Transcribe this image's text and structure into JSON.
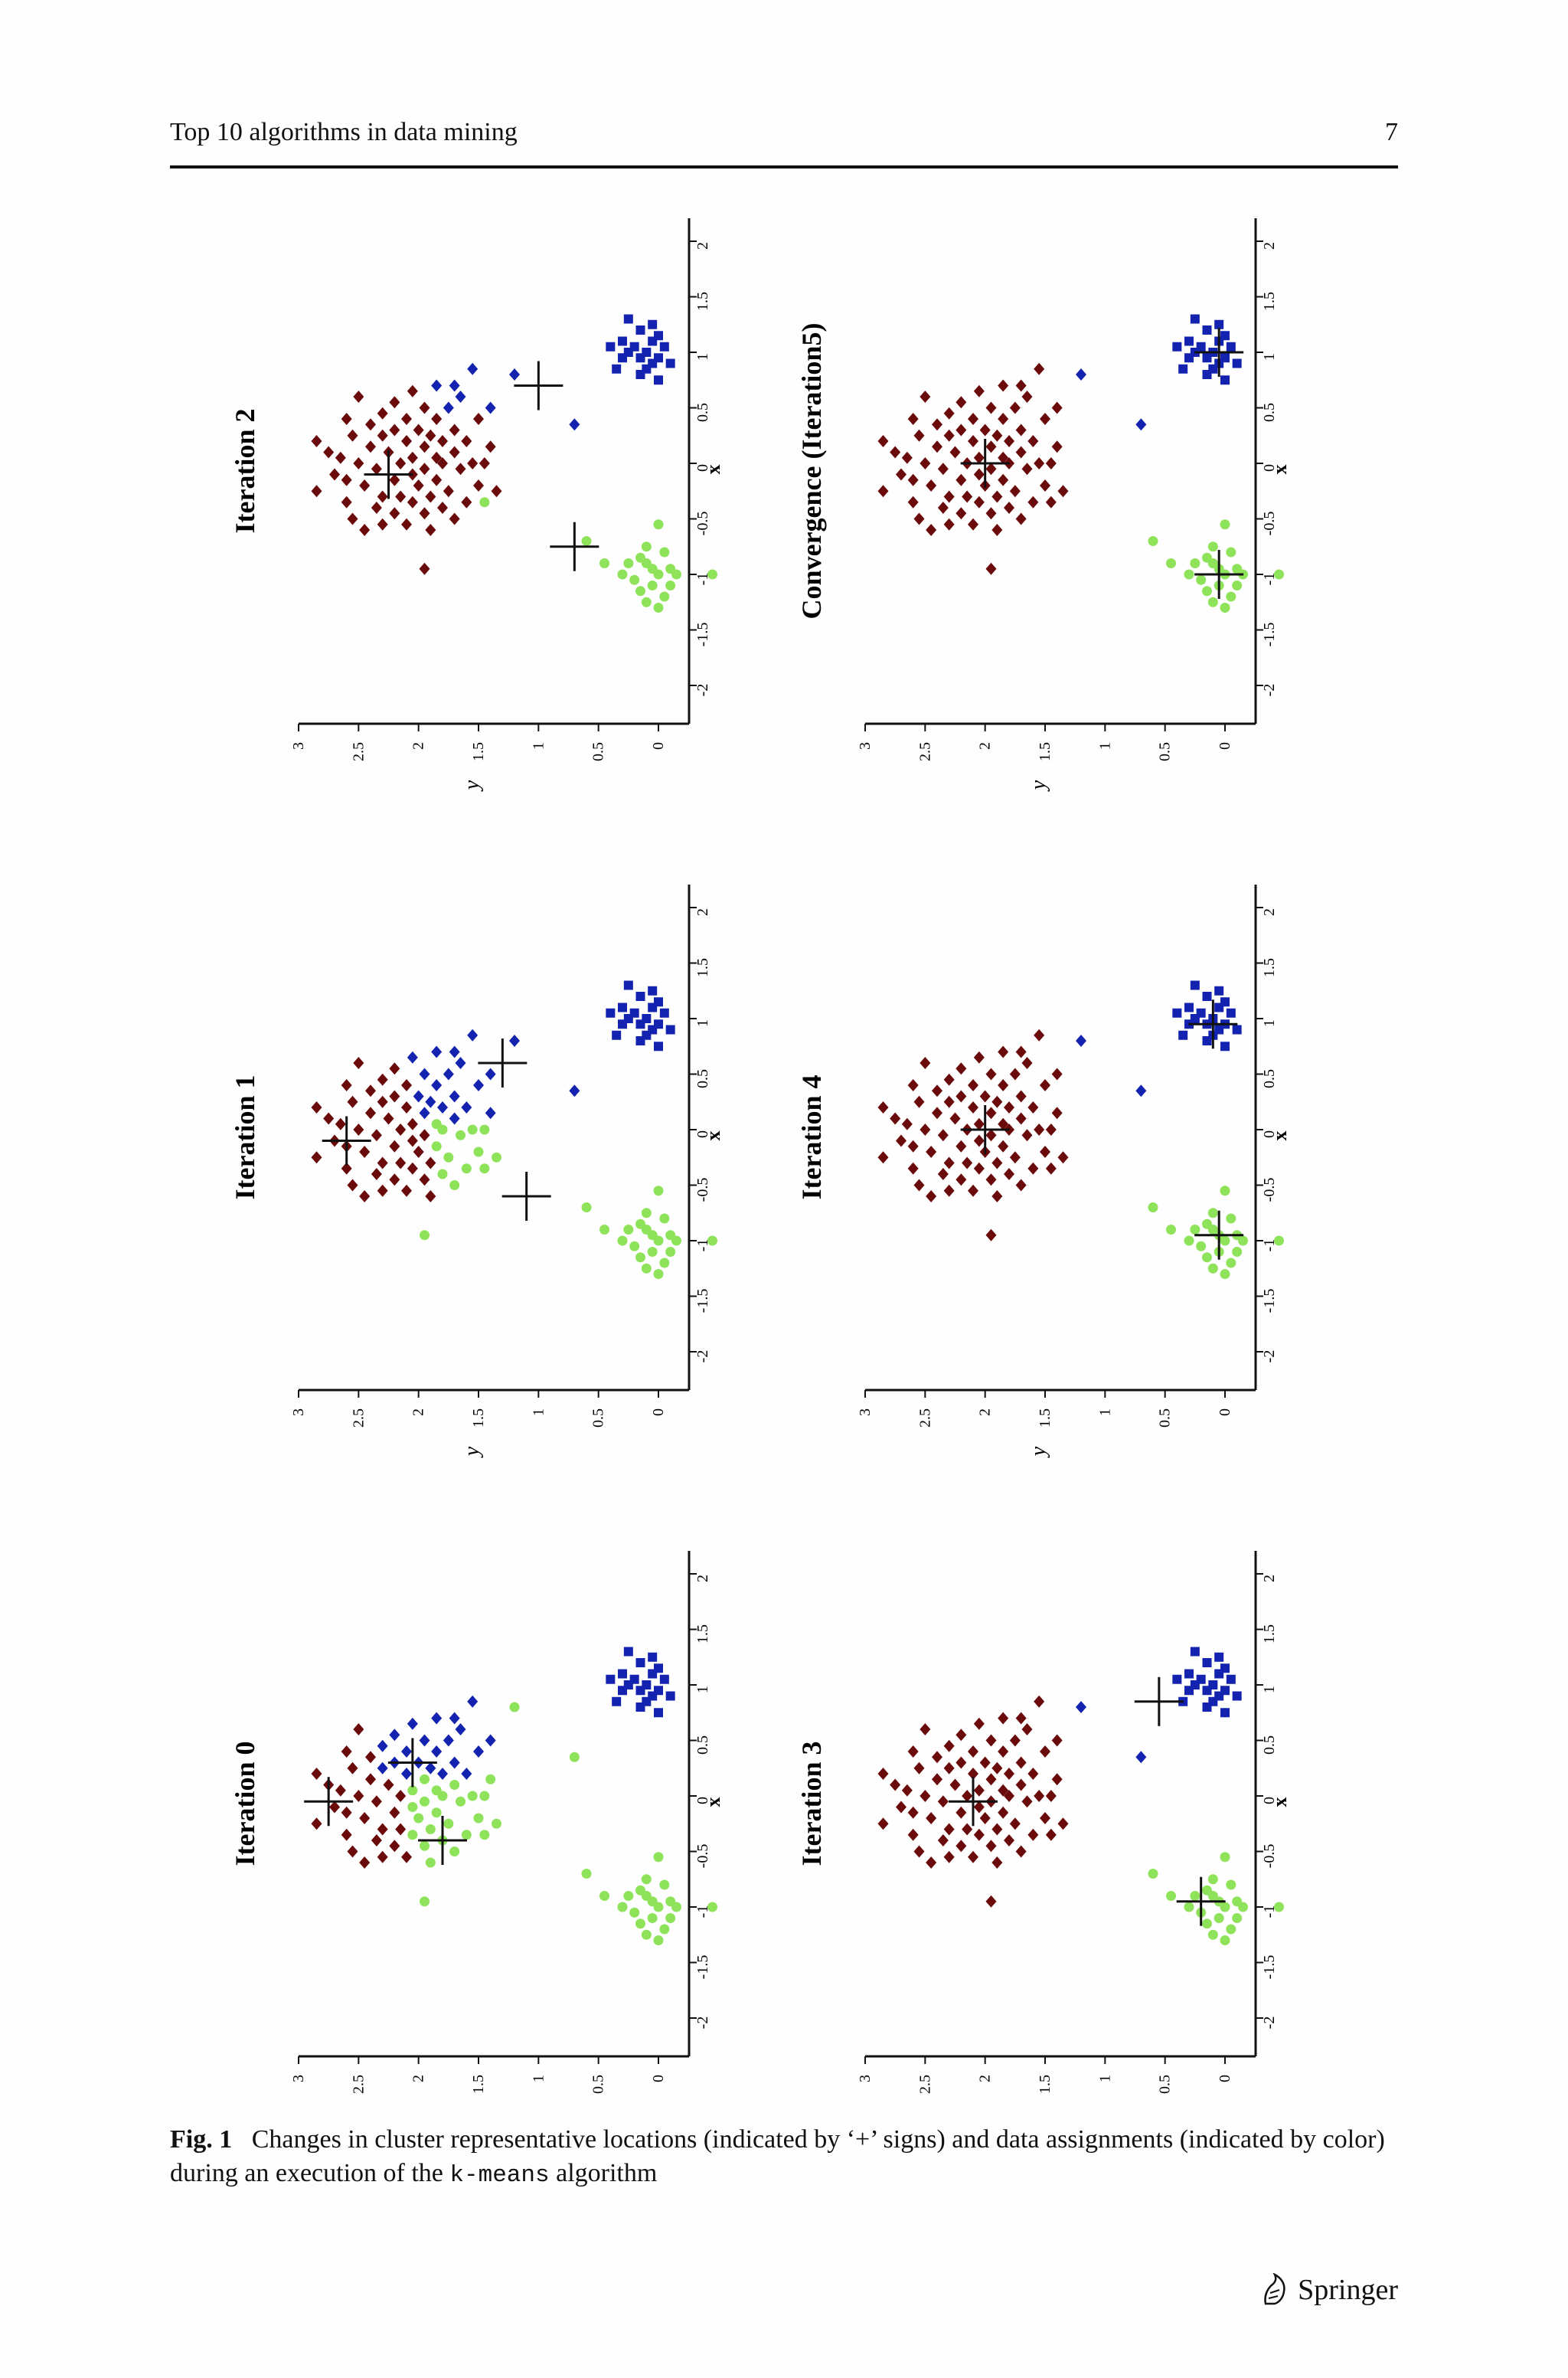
{
  "page": {
    "running_title": "Top 10 algorithms in data mining",
    "page_number": "7",
    "publisher": "Springer"
  },
  "caption": {
    "label": "Fig. 1",
    "text_before": "Changes in cluster representative locations (indicated by ‘+’ signs) and data assignments (indicated by color) during an execution of the ",
    "code": "k-means",
    "text_after": " algorithm"
  },
  "colors": {
    "cluster_a": "#6b0a0a",
    "cluster_b": "#1323b0",
    "cluster_c": "#8ee35a",
    "centroid": "#111111"
  },
  "chart_data": [
    {
      "type": "scatter",
      "title": "Iteration 0",
      "xlabel": "x",
      "ylabel": "y",
      "xlim": [
        -2,
        2
      ],
      "ylim": [
        0,
        3
      ],
      "xticks": [
        "-2",
        "-1.5",
        "-1",
        "-0.5",
        "0",
        "0.5",
        "1",
        "1.5",
        "2"
      ],
      "yticks": [
        "0",
        "0.5",
        "1",
        "1.5",
        "2",
        "2.5",
        "3"
      ],
      "orientation": "rotated 90° counter-clockwise",
      "centroids": [
        [
          -0.05,
          2.75
        ],
        [
          0.3,
          2.05
        ],
        [
          -0.4,
          1.8
        ]
      ],
      "assignment": "iter0"
    },
    {
      "type": "scatter",
      "title": "Iteration 1",
      "xlabel": "x",
      "ylabel": "y",
      "xlim": [
        -2,
        2
      ],
      "ylim": [
        0,
        3
      ],
      "xticks": [
        "-2",
        "-1.5",
        "-1",
        "-0.5",
        "0",
        "0.5",
        "1",
        "1.5",
        "2"
      ],
      "yticks": [
        "0",
        "0.5",
        "1",
        "1.5",
        "2",
        "2.5",
        "3"
      ],
      "orientation": "rotated 90° counter-clockwise",
      "centroids": [
        [
          -0.1,
          2.6
        ],
        [
          0.6,
          1.3
        ],
        [
          -0.6,
          1.1
        ]
      ],
      "assignment": "iter1"
    },
    {
      "type": "scatter",
      "title": "Iteration 2",
      "xlabel": "x",
      "ylabel": "y",
      "xlim": [
        -2,
        2
      ],
      "ylim": [
        0,
        3
      ],
      "xticks": [
        "-2",
        "-1.5",
        "-1",
        "-0.5",
        "0",
        "0.5",
        "1",
        "1.5",
        "2"
      ],
      "yticks": [
        "0",
        "0.5",
        "1",
        "1.5",
        "2",
        "2.5",
        "3"
      ],
      "orientation": "rotated 90° counter-clockwise",
      "centroids": [
        [
          -0.1,
          2.25
        ],
        [
          0.7,
          1.0
        ],
        [
          -0.75,
          0.7
        ]
      ],
      "assignment": "iter2"
    },
    {
      "type": "scatter",
      "title": "Iteration 3",
      "xlabel": "x",
      "ylabel": "y",
      "xlim": [
        -2,
        2
      ],
      "ylim": [
        0,
        3
      ],
      "xticks": [
        "-2",
        "-1.5",
        "-1",
        "-0.5",
        "0",
        "0.5",
        "1",
        "1.5",
        "2"
      ],
      "yticks": [
        "0",
        "0.5",
        "1",
        "1.5",
        "2",
        "2.5",
        "3"
      ],
      "orientation": "rotated 90° counter-clockwise",
      "centroids": [
        [
          -0.05,
          2.1
        ],
        [
          0.85,
          0.55
        ],
        [
          -0.95,
          0.2
        ]
      ],
      "assignment": "final"
    },
    {
      "type": "scatter",
      "title": "Iteration 4",
      "xlabel": "x",
      "ylabel": "y",
      "xlim": [
        -2,
        2
      ],
      "ylim": [
        0,
        3
      ],
      "xticks": [
        "-2",
        "-1.5",
        "-1",
        "-0.5",
        "0",
        "0.5",
        "1",
        "1.5",
        "2"
      ],
      "yticks": [
        "0",
        "0.5",
        "1",
        "1.5",
        "2",
        "2.5",
        "3"
      ],
      "orientation": "rotated 90° counter-clockwise",
      "centroids": [
        [
          0.0,
          2.0
        ],
        [
          0.95,
          0.1
        ],
        [
          -0.95,
          0.05
        ]
      ],
      "assignment": "final"
    },
    {
      "type": "scatter",
      "title": "Convergence (Iteration5)",
      "xlabel": "x",
      "ylabel": "y",
      "xlim": [
        -2,
        2
      ],
      "ylim": [
        0,
        3
      ],
      "xticks": [
        "-2",
        "-1.5",
        "-1",
        "-0.5",
        "0",
        "0.5",
        "1",
        "1.5",
        "2"
      ],
      "yticks": [
        "0",
        "0.5",
        "1",
        "1.5",
        "2",
        "2.5",
        "3"
      ],
      "orientation": "rotated 90° counter-clockwise",
      "centroids": [
        [
          0.0,
          2.0
        ],
        [
          1.0,
          0.05
        ],
        [
          -1.0,
          0.05
        ]
      ],
      "assignment": "final"
    }
  ],
  "points": {
    "a": [
      [
        -0.25,
        2.85
      ],
      [
        0.2,
        2.85
      ],
      [
        -0.1,
        2.7
      ],
      [
        0.05,
        2.65
      ],
      [
        -0.35,
        2.6
      ],
      [
        0.25,
        2.55
      ],
      [
        -0.5,
        2.55
      ],
      [
        0.4,
        2.6
      ],
      [
        0.6,
        2.5
      ],
      [
        -0.6,
        2.45
      ],
      [
        0.0,
        2.5
      ],
      [
        -0.2,
        2.45
      ],
      [
        0.15,
        2.4
      ],
      [
        0.35,
        2.4
      ],
      [
        -0.4,
        2.35
      ],
      [
        -0.05,
        2.35
      ],
      [
        0.25,
        2.3
      ],
      [
        0.45,
        2.3
      ],
      [
        -0.3,
        2.3
      ],
      [
        -0.55,
        2.3
      ],
      [
        0.1,
        2.25
      ],
      [
        -0.15,
        2.2
      ],
      [
        0.3,
        2.2
      ],
      [
        -0.45,
        2.2
      ],
      [
        0.55,
        2.2
      ],
      [
        0.0,
        2.15
      ],
      [
        -0.3,
        2.15
      ],
      [
        0.2,
        2.1
      ],
      [
        -0.55,
        2.1
      ],
      [
        0.4,
        2.1
      ],
      [
        -0.1,
        2.05
      ],
      [
        0.05,
        2.05
      ],
      [
        -0.35,
        2.05
      ],
      [
        0.65,
        2.05
      ],
      [
        0.3,
        2.0
      ],
      [
        -0.2,
        2.0
      ],
      [
        0.15,
        1.95
      ],
      [
        -0.45,
        1.95
      ],
      [
        -0.05,
        1.95
      ],
      [
        0.5,
        1.95
      ],
      [
        0.25,
        1.9
      ],
      [
        -0.3,
        1.9
      ],
      [
        -0.6,
        1.9
      ],
      [
        0.05,
        1.85
      ],
      [
        0.4,
        1.85
      ],
      [
        -0.15,
        1.85
      ],
      [
        0.7,
        1.85
      ],
      [
        0.2,
        1.8
      ],
      [
        -0.4,
        1.8
      ],
      [
        0.0,
        1.8
      ],
      [
        -0.25,
        1.75
      ],
      [
        0.5,
        1.75
      ],
      [
        0.3,
        1.7
      ],
      [
        -0.5,
        1.7
      ],
      [
        0.1,
        1.7
      ],
      [
        -0.05,
        1.65
      ],
      [
        0.6,
        1.65
      ],
      [
        -0.35,
        1.6
      ],
      [
        0.2,
        1.6
      ],
      [
        0.0,
        1.55
      ],
      [
        -0.2,
        1.5
      ],
      [
        0.4,
        1.5
      ],
      [
        0.85,
        1.55
      ],
      [
        0.15,
        1.4
      ],
      [
        -0.25,
        1.35
      ],
      [
        0.0,
        1.45
      ],
      [
        0.5,
        1.4
      ],
      [
        -0.35,
        1.45
      ],
      [
        -0.95,
        1.95
      ],
      [
        0.1,
        2.75
      ],
      [
        0.7,
        1.7
      ],
      [
        -0.15,
        2.6
      ]
    ],
    "b": [
      [
        0.9,
        0.05
      ],
      [
        1.0,
        0.1
      ],
      [
        1.1,
        0.05
      ],
      [
        0.95,
        0.15
      ],
      [
        1.05,
        0.2
      ],
      [
        0.85,
        0.1
      ],
      [
        1.2,
        0.15
      ],
      [
        0.95,
        0.0
      ],
      [
        1.05,
        -0.05
      ],
      [
        1.15,
        0.0
      ],
      [
        0.9,
        -0.1
      ],
      [
        1.0,
        0.25
      ],
      [
        0.8,
        0.15
      ],
      [
        1.25,
        0.05
      ],
      [
        1.1,
        0.3
      ],
      [
        0.75,
        0.0
      ],
      [
        1.3,
        0.25
      ],
      [
        0.95,
        0.3
      ],
      [
        1.05,
        0.4
      ],
      [
        0.85,
        0.35
      ],
      [
        0.8,
        1.2
      ],
      [
        0.35,
        0.7
      ]
    ],
    "c": [
      [
        -0.55,
        0.0
      ],
      [
        -0.8,
        -0.05
      ],
      [
        -0.9,
        0.1
      ],
      [
        -1.0,
        0.0
      ],
      [
        -1.1,
        0.05
      ],
      [
        -0.95,
        -0.1
      ],
      [
        -1.05,
        0.2
      ],
      [
        -1.2,
        -0.05
      ],
      [
        -0.85,
        0.15
      ],
      [
        -1.15,
        0.15
      ],
      [
        -1.3,
        0.0
      ],
      [
        -0.75,
        0.1
      ],
      [
        -1.0,
        -0.15
      ],
      [
        -0.9,
        0.25
      ],
      [
        -1.1,
        -0.1
      ],
      [
        -0.7,
        0.6
      ],
      [
        -0.9,
        0.45
      ],
      [
        -1.0,
        0.3
      ],
      [
        -1.25,
        0.1
      ],
      [
        -0.95,
        0.05
      ],
      [
        -1.0,
        -0.45
      ]
    ]
  }
}
